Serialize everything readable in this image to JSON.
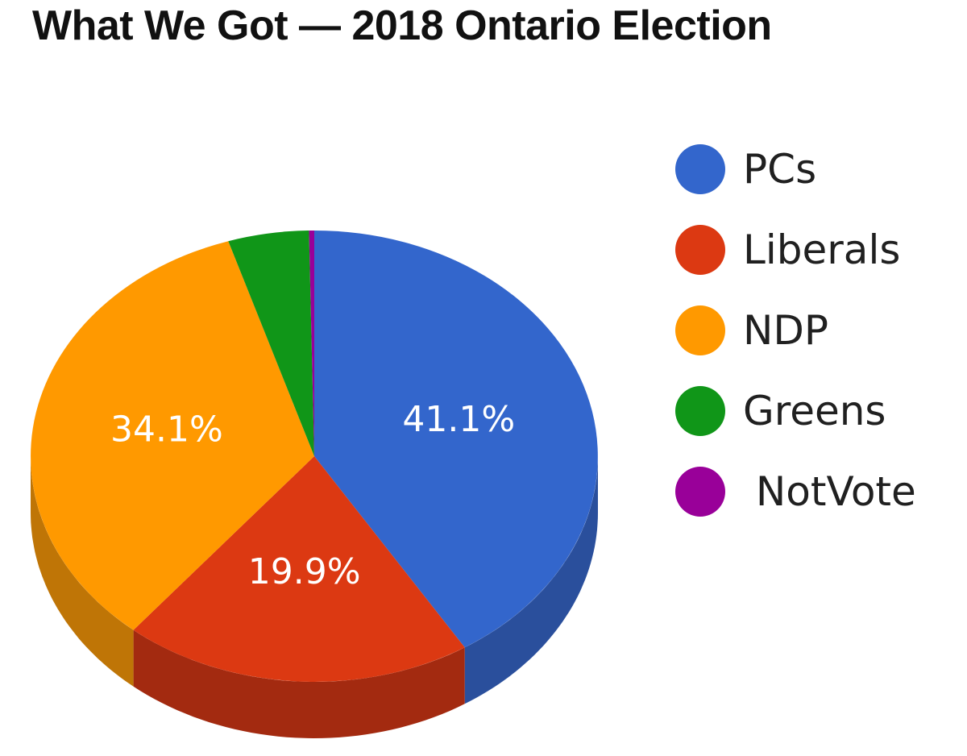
{
  "chart_data": {
    "type": "pie",
    "title": "What We Got — 2018 Ontario Election",
    "slices": [
      {
        "name": "PCs",
        "value": 41.1,
        "label": "41.1%",
        "color": "#3366cc",
        "side_color": "#2a4f9c"
      },
      {
        "name": "Liberals",
        "value": 19.9,
        "label": "19.9%",
        "color": "#dc3912",
        "side_color": "#a32a10"
      },
      {
        "name": "NDP",
        "value": 34.1,
        "label": "34.1%",
        "color": "#ff9900",
        "side_color": "#bf7506"
      },
      {
        "name": "Greens",
        "value": 4.6,
        "label": "",
        "color": "#109618",
        "side_color": "#0c7012"
      },
      {
        "name": "NotVote",
        "value": 0.3,
        "label": "",
        "color": "#990099",
        "side_color": "#6e006e"
      }
    ],
    "legend": {
      "position": "right",
      "items": [
        "PCs",
        "Liberals",
        "NDP",
        "Greens",
        " NotVote"
      ]
    },
    "three_d": true
  }
}
